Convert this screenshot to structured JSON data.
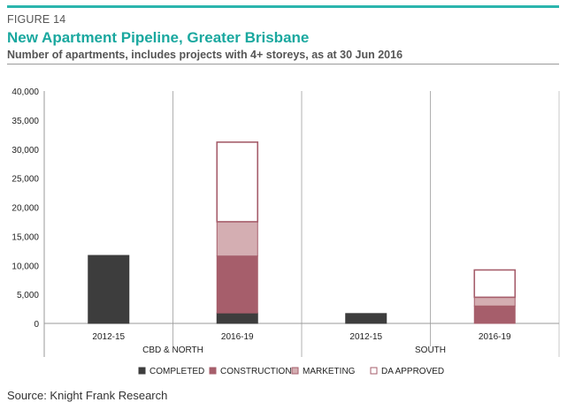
{
  "header": {
    "figure_label": "FIGURE 14",
    "title": "New Apartment Pipeline, Greater Brisbane",
    "subtitle": "Number of apartments, includes projects with 4+ storeys, as at 30 Jun 2016"
  },
  "footer": {
    "source": "Source: Knight Frank Research"
  },
  "colors": {
    "accent": "#1aa89f",
    "completed": "#3d3d3d",
    "construction": "#a65e6b",
    "marketing": "#d4aeb2",
    "da_approved": "#ffffff",
    "da_approved_border": "#a65e6b"
  },
  "chart_data": {
    "type": "bar",
    "stacked": true,
    "groups": [
      "CBD & NORTH",
      "SOUTH"
    ],
    "categories": [
      "2012-15",
      "2016-19",
      "2012-15",
      "2016-19"
    ],
    "category_groups": [
      "CBD & NORTH",
      "CBD & NORTH",
      "SOUTH",
      "SOUTH"
    ],
    "series": [
      {
        "name": "COMPLETED",
        "values": [
          11700,
          1800,
          1700,
          0
        ]
      },
      {
        "name": "CONSTRUCTION",
        "values": [
          0,
          9800,
          0,
          3000
        ]
      },
      {
        "name": "MARKETING",
        "values": [
          0,
          5900,
          0,
          1500
        ]
      },
      {
        "name": "DA APPROVED",
        "values": [
          0,
          13700,
          0,
          4700
        ]
      }
    ],
    "yticks": [
      "0",
      "5,000",
      "10,000",
      "15,000",
      "20,000",
      "25,000",
      "30,000",
      "35,000",
      "40,000"
    ],
    "ylim": [
      0,
      40000
    ],
    "legend_position": "bottom"
  }
}
